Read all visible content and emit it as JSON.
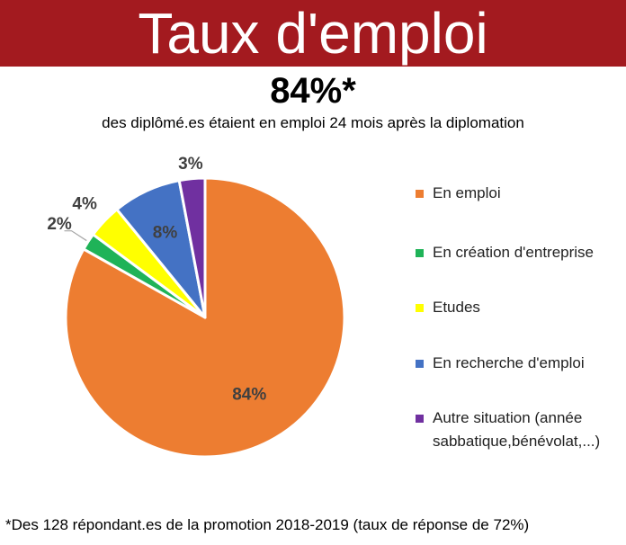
{
  "header": {
    "title": "Taux d'emploi",
    "headline": "84%*",
    "subtitle": "des diplômé.es étaient en emploi 24 mois après la diplomation"
  },
  "footnote": "*Des 128 répondant.es de la promotion 2018-2019 (taux de réponse de 72%)",
  "colors": {
    "banner": "#a31a1f",
    "emploi": "#ed7d31",
    "creation": "#1fb358",
    "etudes": "#ffff00",
    "recherche": "#4472c4",
    "autre": "#7030a0"
  },
  "chart_data": {
    "type": "pie",
    "categories": [
      "En emploi",
      "En création d'entreprise",
      "Etudes",
      "En recherche d'emploi",
      "Autre situation (année sabbatique,bénévolat,...)"
    ],
    "values": [
      84,
      2,
      4,
      8,
      3
    ],
    "data_labels": [
      "84%",
      "2%",
      "4%",
      "8%",
      "3%"
    ],
    "legend_position": "right"
  },
  "legend": [
    {
      "line1": "En emploi",
      "line2": "",
      "color": "#ed7d31"
    },
    {
      "line1": "En création d'entreprise",
      "line2": "",
      "color": "#1fb358"
    },
    {
      "line1": "Etudes",
      "line2": "",
      "color": "#ffff00"
    },
    {
      "line1": "En recherche d'emploi",
      "line2": "",
      "color": "#4472c4"
    },
    {
      "line1": "Autre situation (année",
      "line2": "sabbatique,bénévolat,...)",
      "color": "#7030a0"
    }
  ]
}
